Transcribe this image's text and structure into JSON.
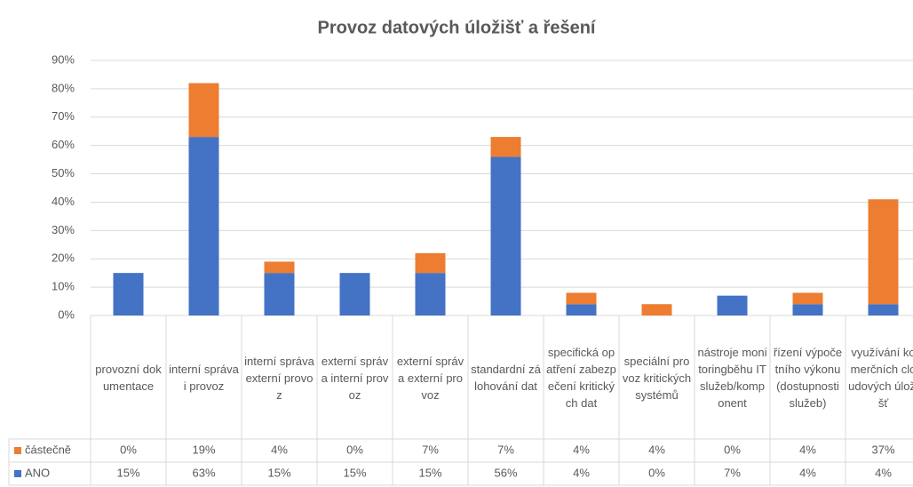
{
  "chart_data": {
    "type": "stacked-bar",
    "title": "Provoz datových úložišť a řešení",
    "categories": [
      "provozní dokumentace",
      "interní správa i provoz",
      "interní správa externí provoz",
      "externí správa interní provoz",
      "externí správa externí provoz",
      "standardní zálohování dat",
      "specifická opatření zabezpečení kritických dat",
      "speciální provoz kritických systémů",
      "nástroje monitoringběhu IT služeb/komponent",
      "řízení výpočetního výkonu (dostupnosti služeb)",
      "využívání komerčních cloudových úložišť"
    ],
    "series": [
      {
        "name": "ANO",
        "color": "#4472c4",
        "values": [
          15,
          63,
          15,
          15,
          15,
          56,
          4,
          0,
          7,
          4,
          4
        ],
        "value_labels": [
          "15%",
          "63%",
          "15%",
          "15%",
          "15%",
          "56%",
          "4%",
          "0%",
          "7%",
          "4%",
          "4%"
        ]
      },
      {
        "name": "částečně",
        "color": "#ed7d31",
        "values": [
          0,
          19,
          4,
          0,
          7,
          7,
          4,
          4,
          0,
          4,
          37
        ],
        "value_labels": [
          "0%",
          "19%",
          "4%",
          "0%",
          "7%",
          "7%",
          "4%",
          "4%",
          "0%",
          "4%",
          "37%"
        ]
      }
    ],
    "ylim": [
      0,
      90
    ],
    "yticks": [
      {
        "value": 0,
        "label": "0%"
      },
      {
        "value": 10,
        "label": "10%"
      },
      {
        "value": 20,
        "label": "20%"
      },
      {
        "value": 30,
        "label": "30%"
      },
      {
        "value": 40,
        "label": "40%"
      },
      {
        "value": 50,
        "label": "50%"
      },
      {
        "value": 60,
        "label": "60%"
      },
      {
        "value": 70,
        "label": "70%"
      },
      {
        "value": 80,
        "label": "80%"
      },
      {
        "value": 90,
        "label": "90%"
      }
    ],
    "grid": true
  }
}
